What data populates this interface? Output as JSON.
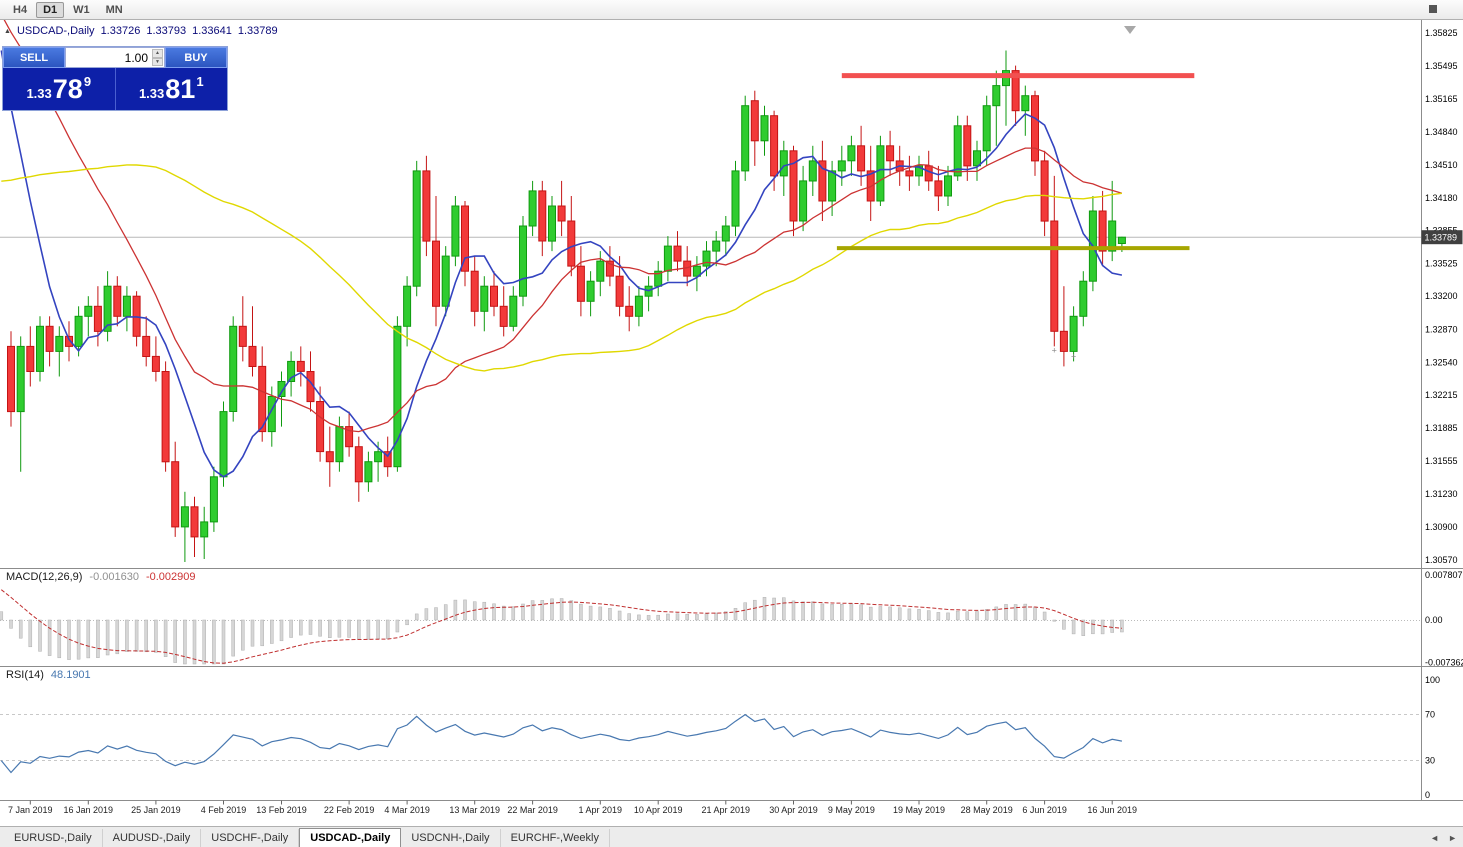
{
  "toolbar": {
    "timeframes": [
      {
        "label": "H4",
        "active": false
      },
      {
        "label": "D1",
        "active": true
      },
      {
        "label": "W1",
        "active": false
      },
      {
        "label": "MN",
        "active": false
      }
    ]
  },
  "chart_header": {
    "symbol_title": "USDCAD-,Daily",
    "open": "1.33726",
    "high": "1.33793",
    "low": "1.33641",
    "close": "1.33789"
  },
  "trade_panel": {
    "sell_label": "SELL",
    "buy_label": "BUY",
    "volume": "1.00",
    "sell_price_big": "1.33",
    "sell_price_mid": "78",
    "sell_price_sup": "9",
    "buy_price_big": "1.33",
    "buy_price_mid": "81",
    "buy_price_sup": "1"
  },
  "indicators": {
    "macd_label": "MACD(12,26,9)",
    "macd_value": "-0.001630",
    "macd_signal_value": "-0.002909",
    "rsi_label": "RSI(14)",
    "rsi_value": "48.1901"
  },
  "bottom_tabs": {
    "items": [
      "EURUSD-,Daily",
      "AUDUSD-,Daily",
      "USDCHF-,Daily",
      "USDCAD-,Daily",
      "USDCNH-,Daily",
      "EURCHF-,Weekly"
    ],
    "active_index": 3
  },
  "chart_data": {
    "type": "candlestick",
    "symbol": "USDCAD",
    "period": "Daily",
    "current_bid": 1.33789,
    "current_bid_label": "1.33789",
    "price_axis_labels": [
      "1.35825",
      "1.35495",
      "1.35165",
      "1.34840",
      "1.34510",
      "1.34180",
      "1.33855",
      "1.33525",
      "1.33200",
      "1.32870",
      "1.32540",
      "1.32215",
      "1.31885",
      "1.31555",
      "1.31230",
      "1.30900",
      "1.30570"
    ],
    "x_labels": [
      {
        "text": "7 Jan 2019",
        "i": 2
      },
      {
        "text": "16 Jan 2019",
        "i": 8
      },
      {
        "text": "25 Jan 2019",
        "i": 15
      },
      {
        "text": "4 Feb 2019",
        "i": 22
      },
      {
        "text": "13 Feb 2019",
        "i": 28
      },
      {
        "text": "22 Feb 2019",
        "i": 35
      },
      {
        "text": "4 Mar 2019",
        "i": 41
      },
      {
        "text": "13 Mar 2019",
        "i": 48
      },
      {
        "text": "22 Mar 2019",
        "i": 54
      },
      {
        "text": "1 Apr 2019",
        "i": 61
      },
      {
        "text": "10 Apr 2019",
        "i": 67
      },
      {
        "text": "21 Apr 2019",
        "i": 74
      },
      {
        "text": "30 Apr 2019",
        "i": 81
      },
      {
        "text": "9 May 2019",
        "i": 87
      },
      {
        "text": "19 May 2019",
        "i": 94
      },
      {
        "text": "28 May 2019",
        "i": 101
      },
      {
        "text": "6 Jun 2019",
        "i": 107
      },
      {
        "text": "16 Jun 2019",
        "i": 114
      }
    ],
    "candles": [
      [
        1.327,
        1.3285,
        1.319,
        1.3205
      ],
      [
        1.3205,
        1.328,
        1.3145,
        1.327
      ],
      [
        1.327,
        1.329,
        1.323,
        1.3245
      ],
      [
        1.3245,
        1.33,
        1.3235,
        1.329
      ],
      [
        1.329,
        1.33,
        1.325,
        1.3265
      ],
      [
        1.3265,
        1.329,
        1.324,
        1.328
      ],
      [
        1.328,
        1.3295,
        1.3255,
        1.327
      ],
      [
        1.327,
        1.331,
        1.326,
        1.33
      ],
      [
        1.33,
        1.332,
        1.328,
        1.331
      ],
      [
        1.331,
        1.333,
        1.327,
        1.3285
      ],
      [
        1.3285,
        1.3345,
        1.3275,
        1.333
      ],
      [
        1.333,
        1.334,
        1.329,
        1.33
      ],
      [
        1.33,
        1.333,
        1.3285,
        1.332
      ],
      [
        1.332,
        1.3325,
        1.327,
        1.328
      ],
      [
        1.328,
        1.33,
        1.325,
        1.326
      ],
      [
        1.326,
        1.328,
        1.3235,
        1.3245
      ],
      [
        1.3245,
        1.3255,
        1.3145,
        1.3155
      ],
      [
        1.3155,
        1.3175,
        1.308,
        1.309
      ],
      [
        1.309,
        1.3125,
        1.3055,
        1.311
      ],
      [
        1.311,
        1.312,
        1.306,
        1.308
      ],
      [
        1.308,
        1.311,
        1.3058,
        1.3095
      ],
      [
        1.3095,
        1.315,
        1.3085,
        1.314
      ],
      [
        1.314,
        1.3215,
        1.313,
        1.3205
      ],
      [
        1.3205,
        1.33,
        1.3195,
        1.329
      ],
      [
        1.329,
        1.332,
        1.3255,
        1.327
      ],
      [
        1.327,
        1.331,
        1.324,
        1.325
      ],
      [
        1.325,
        1.327,
        1.3175,
        1.3185
      ],
      [
        1.3185,
        1.323,
        1.317,
        1.322
      ],
      [
        1.322,
        1.3245,
        1.319,
        1.3235
      ],
      [
        1.3235,
        1.3265,
        1.322,
        1.3255
      ],
      [
        1.3255,
        1.327,
        1.323,
        1.3245
      ],
      [
        1.3245,
        1.3265,
        1.3205,
        1.3215
      ],
      [
        1.3215,
        1.323,
        1.3155,
        1.3165
      ],
      [
        1.3165,
        1.319,
        1.313,
        1.3155
      ],
      [
        1.3155,
        1.32,
        1.3145,
        1.319
      ],
      [
        1.319,
        1.3205,
        1.316,
        1.317
      ],
      [
        1.317,
        1.318,
        1.3115,
        1.3135
      ],
      [
        1.3135,
        1.3165,
        1.3125,
        1.3155
      ],
      [
        1.3155,
        1.3175,
        1.3135,
        1.3165
      ],
      [
        1.3165,
        1.318,
        1.314,
        1.315
      ],
      [
        1.315,
        1.33,
        1.3145,
        1.329
      ],
      [
        1.329,
        1.334,
        1.327,
        1.333
      ],
      [
        1.333,
        1.3455,
        1.332,
        1.3445
      ],
      [
        1.3445,
        1.346,
        1.336,
        1.3375
      ],
      [
        1.3375,
        1.342,
        1.329,
        1.331
      ],
      [
        1.331,
        1.337,
        1.33,
        1.336
      ],
      [
        1.336,
        1.342,
        1.335,
        1.341
      ],
      [
        1.341,
        1.3415,
        1.333,
        1.3345
      ],
      [
        1.3345,
        1.336,
        1.329,
        1.3305
      ],
      [
        1.3305,
        1.334,
        1.3285,
        1.333
      ],
      [
        1.333,
        1.3345,
        1.33,
        1.331
      ],
      [
        1.331,
        1.333,
        1.328,
        1.329
      ],
      [
        1.329,
        1.333,
        1.3285,
        1.332
      ],
      [
        1.332,
        1.34,
        1.331,
        1.339
      ],
      [
        1.339,
        1.3435,
        1.338,
        1.3425
      ],
      [
        1.3425,
        1.3435,
        1.336,
        1.3375
      ],
      [
        1.3375,
        1.342,
        1.3365,
        1.341
      ],
      [
        1.341,
        1.3435,
        1.338,
        1.3395
      ],
      [
        1.3395,
        1.342,
        1.334,
        1.335
      ],
      [
        1.335,
        1.337,
        1.33,
        1.3315
      ],
      [
        1.3315,
        1.3345,
        1.33,
        1.3335
      ],
      [
        1.3335,
        1.3365,
        1.332,
        1.3355
      ],
      [
        1.3355,
        1.337,
        1.333,
        1.334
      ],
      [
        1.334,
        1.336,
        1.33,
        1.331
      ],
      [
        1.331,
        1.333,
        1.3285,
        1.33
      ],
      [
        1.33,
        1.333,
        1.329,
        1.332
      ],
      [
        1.332,
        1.334,
        1.3305,
        1.333
      ],
      [
        1.333,
        1.3355,
        1.332,
        1.3345
      ],
      [
        1.3345,
        1.338,
        1.3335,
        1.337
      ],
      [
        1.337,
        1.3385,
        1.3345,
        1.3355
      ],
      [
        1.3355,
        1.337,
        1.333,
        1.334
      ],
      [
        1.334,
        1.336,
        1.3325,
        1.335
      ],
      [
        1.335,
        1.3375,
        1.334,
        1.3365
      ],
      [
        1.3365,
        1.3385,
        1.335,
        1.3375
      ],
      [
        1.3375,
        1.34,
        1.336,
        1.339
      ],
      [
        1.339,
        1.3455,
        1.338,
        1.3445
      ],
      [
        1.3445,
        1.352,
        1.3435,
        1.351
      ],
      [
        1.3515,
        1.3525,
        1.345,
        1.3475
      ],
      [
        1.3475,
        1.351,
        1.346,
        1.35
      ],
      [
        1.35,
        1.3505,
        1.3425,
        1.344
      ],
      [
        1.344,
        1.3475,
        1.342,
        1.3465
      ],
      [
        1.3465,
        1.347,
        1.338,
        1.3395
      ],
      [
        1.3395,
        1.345,
        1.3385,
        1.3435
      ],
      [
        1.3435,
        1.347,
        1.342,
        1.3455
      ],
      [
        1.3455,
        1.3475,
        1.3395,
        1.3415
      ],
      [
        1.3415,
        1.3455,
        1.34,
        1.3445
      ],
      [
        1.3445,
        1.347,
        1.343,
        1.3455
      ],
      [
        1.3455,
        1.348,
        1.344,
        1.347
      ],
      [
        1.347,
        1.349,
        1.343,
        1.3445
      ],
      [
        1.3445,
        1.347,
        1.3395,
        1.3415
      ],
      [
        1.3415,
        1.348,
        1.341,
        1.347
      ],
      [
        1.347,
        1.3485,
        1.344,
        1.3455
      ],
      [
        1.3455,
        1.347,
        1.343,
        1.3445
      ],
      [
        1.3445,
        1.346,
        1.3425,
        1.344
      ],
      [
        1.344,
        1.346,
        1.343,
        1.345
      ],
      [
        1.345,
        1.3465,
        1.3425,
        1.3435
      ],
      [
        1.3435,
        1.345,
        1.3405,
        1.342
      ],
      [
        1.342,
        1.345,
        1.341,
        1.344
      ],
      [
        1.344,
        1.35,
        1.3435,
        1.349
      ],
      [
        1.349,
        1.35,
        1.3435,
        1.345
      ],
      [
        1.345,
        1.3475,
        1.3435,
        1.3465
      ],
      [
        1.3465,
        1.352,
        1.345,
        1.351
      ],
      [
        1.351,
        1.3545,
        1.347,
        1.353
      ],
      [
        1.353,
        1.3565,
        1.349,
        1.3545
      ],
      [
        1.3545,
        1.355,
        1.349,
        1.3505
      ],
      [
        1.3505,
        1.353,
        1.348,
        1.352
      ],
      [
        1.352,
        1.3525,
        1.344,
        1.3455
      ],
      [
        1.3455,
        1.3465,
        1.338,
        1.3395
      ],
      [
        1.3395,
        1.344,
        1.327,
        1.3285
      ],
      [
        1.3285,
        1.333,
        1.325,
        1.3265
      ],
      [
        1.3265,
        1.331,
        1.3255,
        1.33
      ],
      [
        1.33,
        1.3345,
        1.329,
        1.3335
      ],
      [
        1.3335,
        1.342,
        1.3325,
        1.3405
      ],
      [
        1.3405,
        1.3425,
        1.335,
        1.3365
      ],
      [
        1.3365,
        1.3435,
        1.3355,
        1.3395
      ],
      [
        1.33726,
        1.33793,
        1.33641,
        1.33789
      ]
    ],
    "preroll_closes": [
      1.3155,
      1.3165,
      1.3175,
      1.319,
      1.3205,
      1.322,
      1.323,
      1.324,
      1.3245,
      1.325,
      1.325,
      1.326,
      1.327,
      1.3285,
      1.33,
      1.331,
      1.3325,
      1.334,
      1.3355,
      1.337,
      1.3385,
      1.34,
      1.3415,
      1.343,
      1.3445,
      1.346,
      1.348,
      1.35,
      1.352,
      1.354,
      1.356,
      1.358,
      1.36,
      1.3615,
      1.363,
      1.364,
      1.365,
      1.3655,
      1.3645,
      1.363,
      1.364,
      1.3655,
      1.366,
      1.364,
      1.362,
      1.364,
      1.36,
      1.352,
      1.345,
      1.339
    ],
    "moving_averages": [
      {
        "period": 8,
        "color": "#3444c0",
        "width": 1.6
      },
      {
        "period": 20,
        "color": "#cc3333",
        "width": 1.3
      },
      {
        "period": 50,
        "color": "#e0d800",
        "width": 1.4
      }
    ],
    "overlays": {
      "resistance_line": {
        "price": 1.354,
        "from_bar": 86,
        "to_bar": 122.5,
        "color": "#f25050",
        "width": 5
      },
      "support_line": {
        "price": 1.3368,
        "from_bar": 85.5,
        "to_bar": 122,
        "color": "#a6a600",
        "width": 4
      }
    },
    "markers": [
      {
        "bar": 108,
        "price": 1.3266,
        "glyph": "+"
      },
      {
        "bar": 110,
        "price": 1.326,
        "glyph": "+"
      }
    ],
    "macd": {
      "fast": 12,
      "slow": 26,
      "signal": 9,
      "axis_labels": [
        "0.007807",
        "0.00",
        "-0.007362"
      ],
      "axis_values": [
        0.007807,
        0,
        -0.007362
      ],
      "axis_max": 0.007807,
      "hist_color": "#d6d6d6",
      "hist_border": "#b0b0b0",
      "signal_color": "#c03030"
    },
    "rsi": {
      "period": 14,
      "levels": [
        70,
        30
      ],
      "axis_labels": [
        "100",
        "70",
        "30",
        "0"
      ],
      "line_color": "#4878b0"
    },
    "colors": {
      "up": "#2fcc2f",
      "up_border": "#0f9a0f",
      "down": "#f23a3a",
      "down_border": "#c41414",
      "bid_line": "#b8b8b8",
      "bid_label_bg": "#404040",
      "axis_text": "#000000"
    }
  }
}
